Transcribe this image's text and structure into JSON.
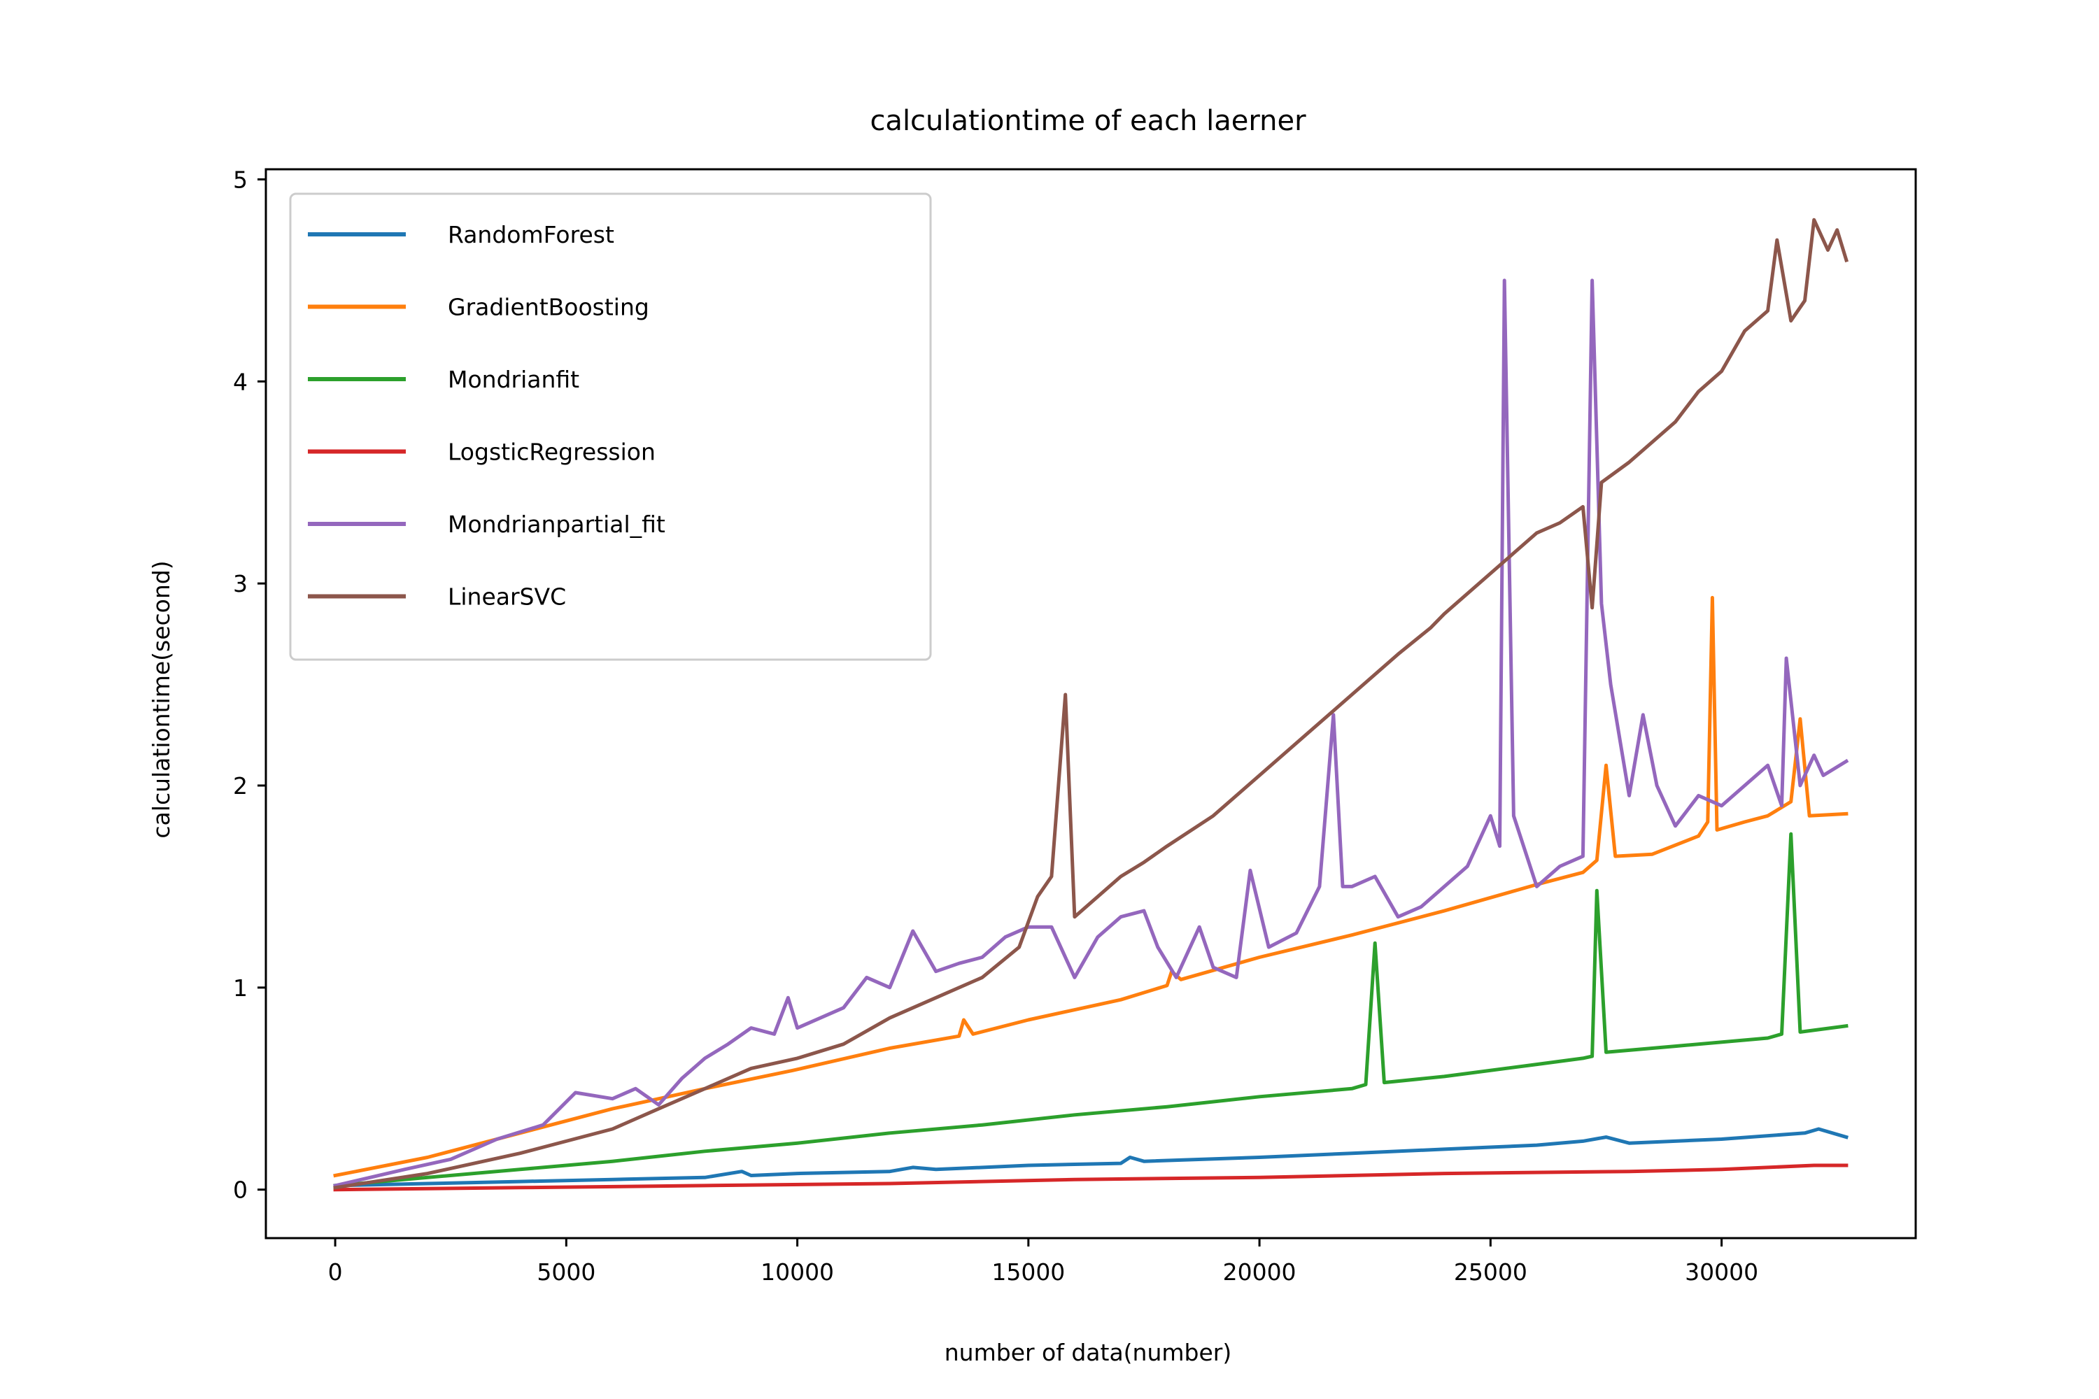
{
  "chart_data": {
    "type": "line",
    "title": "calculationtime of each laerner",
    "xlabel": "number of data(number)",
    "ylabel": "calculationtime(second)",
    "xlim": [
      -1500,
      34200
    ],
    "ylim": [
      -0.24,
      5.05
    ],
    "xticks": [
      0,
      5000,
      10000,
      15000,
      20000,
      25000,
      30000
    ],
    "xtick_labels": [
      "0",
      "5000",
      "10000",
      "15000",
      "20000",
      "25000",
      "30000"
    ],
    "yticks": [
      0,
      1,
      2,
      3,
      4,
      5
    ],
    "ytick_labels": [
      "0",
      "1",
      "2",
      "3",
      "4",
      "5"
    ],
    "grid": false,
    "legend_position": "top-left",
    "series": [
      {
        "name": "RandomForest",
        "color": "#1f77b4",
        "points": [
          [
            0,
            0.02
          ],
          [
            2000,
            0.03
          ],
          [
            4000,
            0.04
          ],
          [
            6000,
            0.05
          ],
          [
            8000,
            0.06
          ],
          [
            8800,
            0.09
          ],
          [
            9000,
            0.07
          ],
          [
            10000,
            0.08
          ],
          [
            12000,
            0.09
          ],
          [
            12500,
            0.11
          ],
          [
            13000,
            0.1
          ],
          [
            15000,
            0.12
          ],
          [
            17000,
            0.13
          ],
          [
            17200,
            0.16
          ],
          [
            17500,
            0.14
          ],
          [
            20000,
            0.16
          ],
          [
            22000,
            0.18
          ],
          [
            24000,
            0.2
          ],
          [
            25000,
            0.21
          ],
          [
            26000,
            0.22
          ],
          [
            27000,
            0.24
          ],
          [
            27500,
            0.26
          ],
          [
            28000,
            0.23
          ],
          [
            30000,
            0.25
          ],
          [
            31800,
            0.28
          ],
          [
            32100,
            0.3
          ],
          [
            32700,
            0.26
          ]
        ]
      },
      {
        "name": "GradientBoosting",
        "color": "#ff7f0e",
        "points": [
          [
            0,
            0.07
          ],
          [
            2000,
            0.16
          ],
          [
            4000,
            0.28
          ],
          [
            6000,
            0.4
          ],
          [
            8000,
            0.5
          ],
          [
            9900,
            0.59
          ],
          [
            12000,
            0.7
          ],
          [
            13500,
            0.76
          ],
          [
            13600,
            0.84
          ],
          [
            13800,
            0.77
          ],
          [
            15000,
            0.84
          ],
          [
            17000,
            0.94
          ],
          [
            18000,
            1.01
          ],
          [
            18100,
            1.08
          ],
          [
            18300,
            1.04
          ],
          [
            20000,
            1.15
          ],
          [
            22000,
            1.26
          ],
          [
            24000,
            1.38
          ],
          [
            26000,
            1.51
          ],
          [
            27000,
            1.57
          ],
          [
            27300,
            1.63
          ],
          [
            27500,
            2.1
          ],
          [
            27700,
            1.65
          ],
          [
            28500,
            1.66
          ],
          [
            29500,
            1.75
          ],
          [
            29700,
            1.82
          ],
          [
            29800,
            2.93
          ],
          [
            29900,
            1.78
          ],
          [
            30500,
            1.82
          ],
          [
            31000,
            1.85
          ],
          [
            31500,
            1.92
          ],
          [
            31700,
            2.33
          ],
          [
            31900,
            1.85
          ],
          [
            32700,
            1.86
          ]
        ]
      },
      {
        "name": "Mondrianfit",
        "color": "#2ca02c",
        "points": [
          [
            0,
            0.02
          ],
          [
            2000,
            0.06
          ],
          [
            4000,
            0.1
          ],
          [
            6000,
            0.14
          ],
          [
            8000,
            0.19
          ],
          [
            10000,
            0.23
          ],
          [
            12000,
            0.28
          ],
          [
            14000,
            0.32
          ],
          [
            16000,
            0.37
          ],
          [
            18000,
            0.41
          ],
          [
            20000,
            0.46
          ],
          [
            22000,
            0.5
          ],
          [
            22300,
            0.52
          ],
          [
            22500,
            1.22
          ],
          [
            22700,
            0.53
          ],
          [
            24000,
            0.56
          ],
          [
            26000,
            0.62
          ],
          [
            27000,
            0.65
          ],
          [
            27200,
            0.66
          ],
          [
            27300,
            1.48
          ],
          [
            27500,
            0.68
          ],
          [
            29000,
            0.71
          ],
          [
            31000,
            0.75
          ],
          [
            31300,
            0.77
          ],
          [
            31500,
            1.76
          ],
          [
            31700,
            0.78
          ],
          [
            32700,
            0.81
          ]
        ]
      },
      {
        "name": "LogsticRegression",
        "color": "#d62728",
        "points": [
          [
            0,
            0.0
          ],
          [
            4000,
            0.01
          ],
          [
            8000,
            0.02
          ],
          [
            12000,
            0.03
          ],
          [
            16000,
            0.05
          ],
          [
            20000,
            0.06
          ],
          [
            24000,
            0.08
          ],
          [
            28000,
            0.09
          ],
          [
            30000,
            0.1
          ],
          [
            32000,
            0.12
          ],
          [
            32700,
            0.12
          ]
        ]
      },
      {
        "name": "Mondrianpartial_fit",
        "color": "#9467bd",
        "points": [
          [
            0,
            0.02
          ],
          [
            1500,
            0.1
          ],
          [
            2500,
            0.15
          ],
          [
            3500,
            0.25
          ],
          [
            4500,
            0.32
          ],
          [
            5200,
            0.48
          ],
          [
            6000,
            0.45
          ],
          [
            6500,
            0.5
          ],
          [
            7000,
            0.42
          ],
          [
            7500,
            0.55
          ],
          [
            8000,
            0.65
          ],
          [
            8500,
            0.72
          ],
          [
            9000,
            0.8
          ],
          [
            9500,
            0.77
          ],
          [
            9800,
            0.95
          ],
          [
            10000,
            0.8
          ],
          [
            11000,
            0.9
          ],
          [
            11500,
            1.05
          ],
          [
            12000,
            1.0
          ],
          [
            12500,
            1.28
          ],
          [
            13000,
            1.08
          ],
          [
            13500,
            1.12
          ],
          [
            14000,
            1.15
          ],
          [
            14500,
            1.25
          ],
          [
            15000,
            1.3
          ],
          [
            15500,
            1.3
          ],
          [
            16000,
            1.05
          ],
          [
            16500,
            1.25
          ],
          [
            17000,
            1.35
          ],
          [
            17500,
            1.38
          ],
          [
            17800,
            1.2
          ],
          [
            18200,
            1.05
          ],
          [
            18700,
            1.3
          ],
          [
            19000,
            1.1
          ],
          [
            19500,
            1.05
          ],
          [
            19800,
            1.58
          ],
          [
            20200,
            1.2
          ],
          [
            20800,
            1.27
          ],
          [
            21300,
            1.5
          ],
          [
            21600,
            2.35
          ],
          [
            21800,
            1.5
          ],
          [
            22000,
            1.5
          ],
          [
            22500,
            1.55
          ],
          [
            23000,
            1.35
          ],
          [
            23500,
            1.4
          ],
          [
            24000,
            1.5
          ],
          [
            24500,
            1.6
          ],
          [
            25000,
            1.85
          ],
          [
            25200,
            1.7
          ],
          [
            25300,
            4.5
          ],
          [
            25500,
            1.85
          ],
          [
            26000,
            1.5
          ],
          [
            26500,
            1.6
          ],
          [
            27000,
            1.65
          ],
          [
            27200,
            4.5
          ],
          [
            27400,
            2.9
          ],
          [
            27600,
            2.5
          ],
          [
            28000,
            1.95
          ],
          [
            28300,
            2.35
          ],
          [
            28600,
            2.0
          ],
          [
            29000,
            1.8
          ],
          [
            29500,
            1.95
          ],
          [
            30000,
            1.9
          ],
          [
            30500,
            2.0
          ],
          [
            31000,
            2.1
          ],
          [
            31300,
            1.9
          ],
          [
            31400,
            2.63
          ],
          [
            31700,
            2.0
          ],
          [
            32000,
            2.15
          ],
          [
            32200,
            2.05
          ],
          [
            32700,
            2.12
          ]
        ]
      },
      {
        "name": "LinearSVC",
        "color": "#8c564b",
        "points": [
          [
            0,
            0.01
          ],
          [
            2000,
            0.08
          ],
          [
            4000,
            0.18
          ],
          [
            6000,
            0.3
          ],
          [
            7000,
            0.4
          ],
          [
            8000,
            0.5
          ],
          [
            9000,
            0.6
          ],
          [
            10000,
            0.65
          ],
          [
            11000,
            0.72
          ],
          [
            12000,
            0.85
          ],
          [
            13000,
            0.95
          ],
          [
            14000,
            1.05
          ],
          [
            14800,
            1.2
          ],
          [
            15200,
            1.45
          ],
          [
            15500,
            1.55
          ],
          [
            15800,
            2.45
          ],
          [
            16000,
            1.35
          ],
          [
            17000,
            1.55
          ],
          [
            17500,
            1.62
          ],
          [
            18000,
            1.7
          ],
          [
            19000,
            1.85
          ],
          [
            20000,
            2.05
          ],
          [
            21000,
            2.25
          ],
          [
            22000,
            2.45
          ],
          [
            23000,
            2.65
          ],
          [
            23700,
            2.78
          ],
          [
            24000,
            2.85
          ],
          [
            24500,
            2.95
          ],
          [
            25000,
            3.05
          ],
          [
            25500,
            3.15
          ],
          [
            26000,
            3.25
          ],
          [
            26500,
            3.3
          ],
          [
            27000,
            3.38
          ],
          [
            27200,
            2.88
          ],
          [
            27400,
            3.5
          ],
          [
            28000,
            3.6
          ],
          [
            29000,
            3.8
          ],
          [
            29500,
            3.95
          ],
          [
            30000,
            4.05
          ],
          [
            30500,
            4.25
          ],
          [
            31000,
            4.35
          ],
          [
            31200,
            4.7
          ],
          [
            31500,
            4.3
          ],
          [
            31800,
            4.4
          ],
          [
            32000,
            4.8
          ],
          [
            32300,
            4.65
          ],
          [
            32500,
            4.75
          ],
          [
            32700,
            4.6
          ]
        ]
      }
    ]
  }
}
